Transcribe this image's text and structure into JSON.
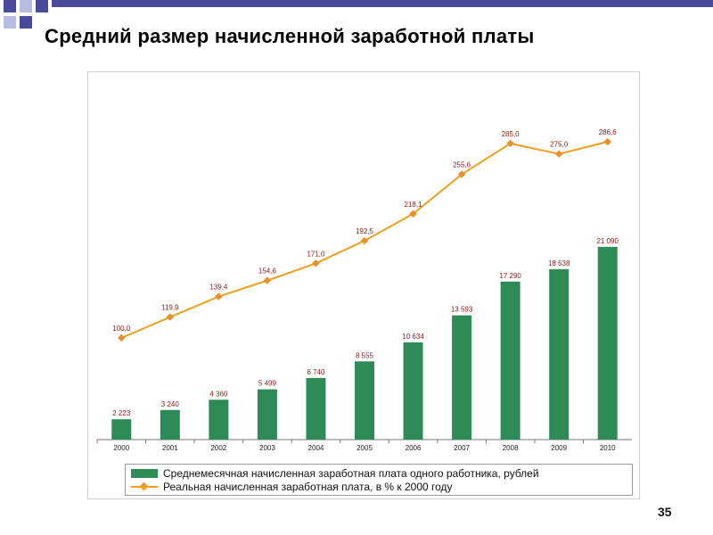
{
  "slide": {
    "title": "Средний размер начисленной заработной платы",
    "page_number": "35",
    "accent_colors": [
      "#4a4a9c",
      "#b8bce0"
    ]
  },
  "chart_data": {
    "type": "bar",
    "categories": [
      "2000",
      "2001",
      "2002",
      "2003",
      "2004",
      "2005",
      "2006",
      "2007",
      "2008",
      "2009",
      "2010"
    ],
    "series": [
      {
        "name": "Среднемесячная начисленная заработная плата одного работника, рублей",
        "type": "bar",
        "color": "#2e8b57",
        "values": [
          2223,
          3240,
          4360,
          5499,
          6740,
          8555,
          10634,
          13593,
          17290,
          18638,
          21090
        ],
        "labels": [
          "2 223",
          "3 240",
          "4 360",
          "5 499",
          "6 740",
          "8 555",
          "10 634",
          "13 593",
          "17 290",
          "18 638",
          "21 090"
        ]
      },
      {
        "name": "Реальная начисленная заработная плата, в % к 2000 году",
        "type": "line",
        "color": "#f0a020",
        "values": [
          100.0,
          119.9,
          139.4,
          154.6,
          171.0,
          192.5,
          218.1,
          255.6,
          285.0,
          275.0,
          286.6
        ],
        "labels": [
          "100,0",
          "119,9",
          "139,4",
          "154,6",
          "171,0",
          "192,5",
          "218,1",
          "255,6",
          "285,0",
          "275,0",
          "286,6"
        ]
      }
    ],
    "legend": "bottom",
    "grid": false,
    "label_color": "#8b1a1a"
  }
}
